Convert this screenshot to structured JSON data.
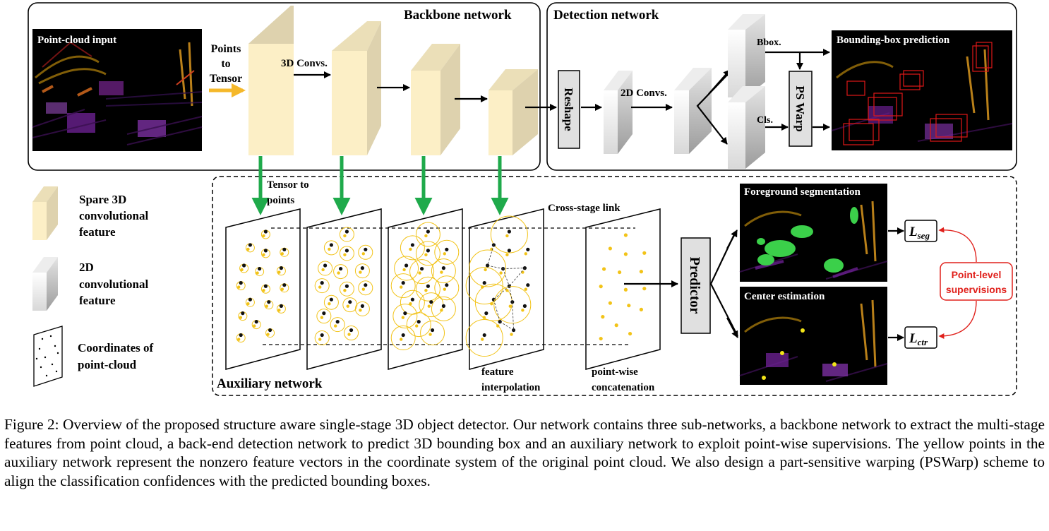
{
  "backbone": {
    "title": "Backbone network"
  },
  "detection": {
    "title": "Detection network"
  },
  "input": {
    "label": "Point-cloud input"
  },
  "points_to_tensor": {
    "line1": "Points",
    "line2": "to",
    "line3": "Tensor"
  },
  "conv3d_label": "3D Convs.",
  "reshape_label": "Reshape",
  "conv2d_label": "2D Convs.",
  "bbox_label": "Bbox.",
  "cls_label": "Cls.",
  "pswarp_label": "PS Warp",
  "bbox_pred": {
    "label": "Bounding-box prediction"
  },
  "legend": {
    "sparse": {
      "l1": "Spare 3D",
      "l2": "convolutional",
      "l3": "feature"
    },
    "dense": {
      "l1": "2D",
      "l2": "convolutional",
      "l3": "feature"
    },
    "coords": {
      "l1": "Coordinates of",
      "l2": "point-cloud"
    }
  },
  "auxiliary": {
    "title": "Auxiliary network",
    "tensor_to_points": {
      "l1": "Tensor to",
      "l2": "points"
    },
    "cross_stage": "Cross-stage link",
    "feature_interp": {
      "l1": "feature",
      "l2": "interpolation"
    },
    "pointwise": {
      "l1": "point-wise",
      "l2": "concatenation"
    },
    "predictor": "Predictor"
  },
  "seg": {
    "label": "Foreground segmentation",
    "loss": "L",
    "loss_sub": "seg"
  },
  "ctr": {
    "label": "Center estimation",
    "loss": "L",
    "loss_sub": "ctr"
  },
  "supervision": {
    "l1": "Point-level",
    "l2": "supervisions"
  },
  "caption": "Figure 2: Overview of the proposed structure aware single-stage 3D object detector. Our network contains three sub-networks, a backbone network to extract the multi-stage features from point cloud, a back-end detection network to predict 3D bounding box and an auxiliary network to exploit point-wise supervisions. The yellow points in the auxiliary network represent the nonzero feature vectors in the coordinate system of the original point cloud. We also design a part-sensitive warping (PSWarp) scheme to align the classification confidences with the predicted bounding boxes.",
  "colors": {
    "sparse_front": "#FCEFC6",
    "sparse_side": "#DED2AE",
    "dense_front": "#EFEFEF",
    "dense_side": "#B8B8B8",
    "green_arrow": "#1FAA4B",
    "orange_arrow": "#F5B82A",
    "supervision_red": "#E0201B",
    "point_yellow": "#F2C318"
  }
}
